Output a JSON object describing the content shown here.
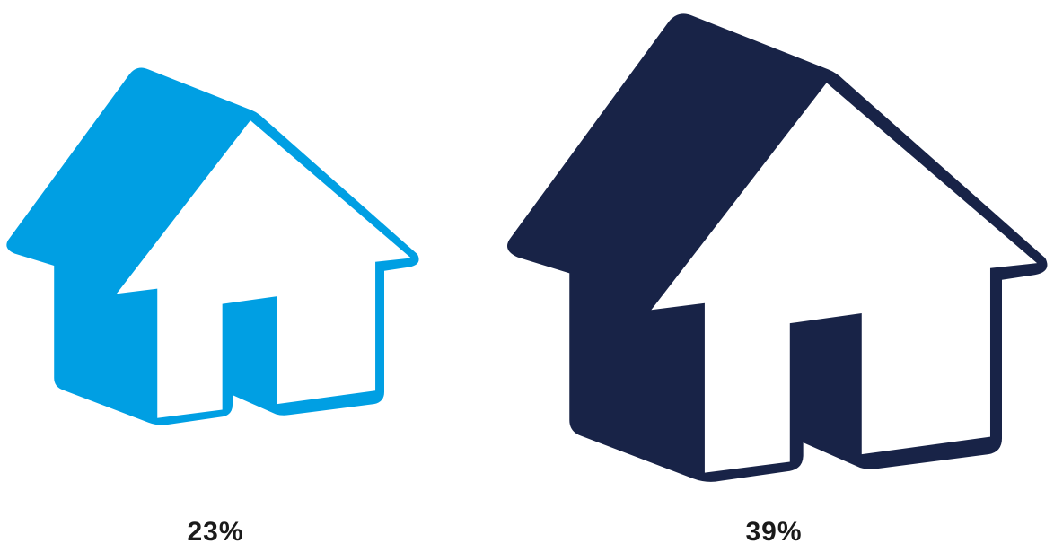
{
  "chart_data": {
    "type": "pictogram",
    "icon": "house-icon",
    "title": "",
    "items": [
      {
        "value": 23,
        "label": "23%",
        "color": "#009FE3"
      },
      {
        "value": 39,
        "label": "39%",
        "color": "#182347"
      }
    ]
  }
}
